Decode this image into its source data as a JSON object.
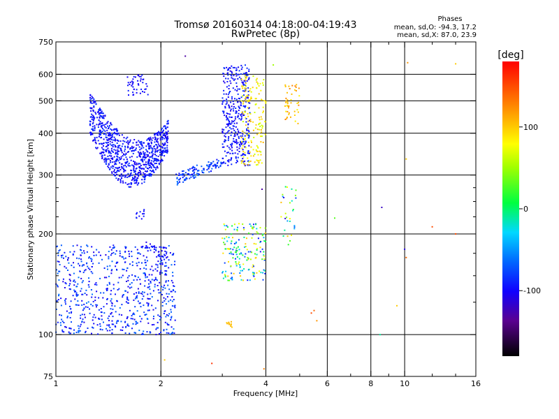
{
  "chart_data": {
    "type": "scatter",
    "title": "Tromsø 20160314 04:18:00-04:19:43",
    "subtitle": "RwPretec (8p)",
    "xlabel": "Frequency [MHz]",
    "ylabel": "Stationary phase Virtual Height [km]",
    "x_scale": "log",
    "y_scale": "log",
    "xlim": [
      1,
      16
    ],
    "ylim": [
      75,
      750
    ],
    "x_ticks": [
      1,
      2,
      4,
      6,
      8,
      10,
      16
    ],
    "x_tick_labels": [
      "1",
      "2",
      "4",
      "6",
      "8",
      "10",
      "16"
    ],
    "x_minor_ticks": [
      3,
      5,
      7,
      9,
      12,
      14
    ],
    "x_gridlines": [
      2,
      4,
      6,
      8,
      10
    ],
    "y_ticks": [
      75,
      100,
      200,
      300,
      400,
      500,
      600,
      750
    ],
    "y_tick_labels": [
      "75",
      "100",
      "200",
      "300",
      "400",
      "500",
      "600",
      "750"
    ],
    "y_minor_ticks": [
      125,
      150,
      175,
      225,
      250,
      275
    ],
    "y_gridlines": [
      100,
      200,
      300,
      400,
      500,
      600
    ],
    "grid": true,
    "phases_box": {
      "title": "Phases",
      "line_o": "mean, sd,O: -94.3, 17.2",
      "line_x": "mean, sd,X:  87.0, 23.9"
    },
    "colorbar": {
      "label": "[deg]",
      "range": [
        -180,
        180
      ],
      "ticks": [
        100,
        0,
        -100
      ],
      "tick_labels": [
        "100",
        "0",
        "-100"
      ]
    },
    "clusters": [
      {
        "f": [
          1.25,
          2.1
        ],
        "h": [
          275,
          420
        ],
        "phase": [
          -110,
          -80
        ],
        "n": 900,
        "shape": "arc_f2"
      },
      {
        "f": [
          1.0,
          2.2
        ],
        "h": [
          100,
          185
        ],
        "phase": [
          -110,
          -60
        ],
        "n": 700,
        "shape": "band"
      },
      {
        "f": [
          2.2,
          3.0
        ],
        "h": [
          290,
          330
        ],
        "phase": [
          -100,
          -60
        ],
        "n": 120,
        "shape": "rise"
      },
      {
        "f": [
          3.0,
          3.6
        ],
        "h": [
          320,
          640
        ],
        "phase": [
          -110,
          -80
        ],
        "n": 380,
        "shape": "band"
      },
      {
        "f": [
          3.4,
          4.0
        ],
        "h": [
          320,
          600
        ],
        "phase": [
          60,
          110
        ],
        "n": 160,
        "shape": "band"
      },
      {
        "f": [
          4.5,
          5.0
        ],
        "h": [
          420,
          560
        ],
        "phase": [
          80,
          130
        ],
        "n": 45,
        "shape": "band"
      },
      {
        "f": [
          1.6,
          1.85
        ],
        "h": [
          520,
          600
        ],
        "phase": [
          -110,
          -90
        ],
        "n": 45,
        "shape": "band"
      },
      {
        "f": [
          3.0,
          4.0
        ],
        "h": [
          145,
          215
        ],
        "phase": [
          -100,
          100
        ],
        "n": 180,
        "shape": "band"
      },
      {
        "f": [
          1.8,
          2.1
        ],
        "h": [
          150,
          190
        ],
        "phase": [
          -110,
          -90
        ],
        "n": 40,
        "shape": "band"
      },
      {
        "f": [
          4.4,
          4.9
        ],
        "h": [
          185,
          280
        ],
        "phase": [
          -120,
          130
        ],
        "n": 30,
        "shape": "band"
      },
      {
        "f": [
          3.05,
          3.2
        ],
        "h": [
          105,
          110
        ],
        "phase": [
          100,
          110
        ],
        "n": 12,
        "shape": "band"
      },
      {
        "f": [
          1.7,
          1.8
        ],
        "h": [
          220,
          240
        ],
        "phase": [
          -100,
          -90
        ],
        "n": 12,
        "shape": "band"
      }
    ],
    "points": [
      {
        "f": 5.4,
        "h": 116,
        "phase": 150
      },
      {
        "f": 5.5,
        "h": 118,
        "phase": 140
      },
      {
        "f": 5.6,
        "h": 110,
        "phase": 120
      },
      {
        "f": 6.3,
        "h": 223,
        "phase": 30
      },
      {
        "f": 8.6,
        "h": 240,
        "phase": -120
      },
      {
        "f": 8.5,
        "h": 100,
        "phase": -10
      },
      {
        "f": 9.5,
        "h": 122,
        "phase": 100
      },
      {
        "f": 10.0,
        "h": 180,
        "phase": -110
      },
      {
        "f": 10.1,
        "h": 170,
        "phase": 140
      },
      {
        "f": 10.2,
        "h": 650,
        "phase": 120
      },
      {
        "f": 10.1,
        "h": 335,
        "phase": 100
      },
      {
        "f": 12.0,
        "h": 210,
        "phase": 150
      },
      {
        "f": 14.0,
        "h": 645,
        "phase": 100
      },
      {
        "f": 14.0,
        "h": 200,
        "phase": 150
      },
      {
        "f": 4.2,
        "h": 640,
        "phase": 50
      },
      {
        "f": 2.35,
        "h": 680,
        "phase": -130
      },
      {
        "f": 2.8,
        "h": 82,
        "phase": 160
      },
      {
        "f": 3.95,
        "h": 79,
        "phase": 130
      },
      {
        "f": 2.05,
        "h": 84,
        "phase": 100
      },
      {
        "f": 3.9,
        "h": 272,
        "phase": -130
      }
    ]
  }
}
